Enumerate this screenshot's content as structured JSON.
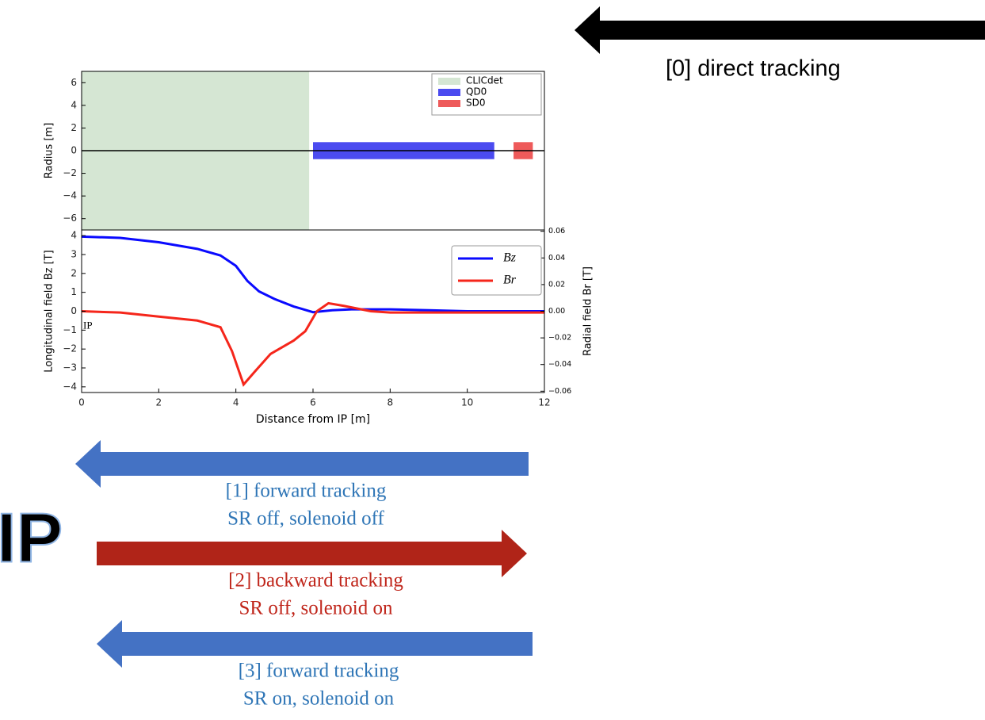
{
  "top_arrow_label": "[0] direct tracking",
  "ip_label": "IP",
  "chart_data": [
    {
      "type": "span",
      "ylabel": "Radius [m]",
      "xlim": [
        0,
        12
      ],
      "ylim": [
        -7,
        7
      ],
      "yticks": [
        {
          "value": -6,
          "label": "−6"
        },
        {
          "value": -4,
          "label": "−4"
        },
        {
          "value": -2,
          "label": "−2"
        },
        0,
        2,
        4,
        6
      ],
      "hline": 0,
      "legend": "upper right",
      "series": [
        {
          "name": "CLICdet",
          "color": "#d5e6d3",
          "start": 0,
          "end": 5.9,
          "bottom": -7,
          "top": 7
        },
        {
          "name": "QD0",
          "color": "#4b4bf0",
          "start": 6.0,
          "end": 10.7,
          "bottom": -0.75,
          "top": 0.75
        },
        {
          "name": "SD0",
          "color": "#ee5a5a",
          "start": 11.2,
          "end": 11.7,
          "bottom": -0.75,
          "top": 0.75
        }
      ]
    },
    {
      "type": "line",
      "xlabel": "Distance from IP [m]",
      "ylabel": "Longitudinal field Bz [T]",
      "y2label": "Radial field Br [T]",
      "annotation": {
        "text": "IP",
        "x": 0,
        "y": -0.8
      },
      "xlim": [
        0,
        12
      ],
      "xticks": [
        0,
        2,
        4,
        6,
        8,
        10,
        12
      ],
      "ylim": [
        -4.3,
        4.3
      ],
      "yticks": [
        {
          "value": -4,
          "label": "−4"
        },
        {
          "value": -3,
          "label": "−3"
        },
        {
          "value": -2,
          "label": "−2"
        },
        {
          "value": -1,
          "label": "−1"
        },
        0,
        1,
        2,
        3,
        4
      ],
      "y2lim": [
        -0.061,
        0.061
      ],
      "y2ticks": [
        {
          "value": -0.06,
          "label": "−0.06"
        },
        {
          "value": -0.04,
          "label": "−0.04"
        },
        {
          "value": -0.02,
          "label": "−0.02"
        },
        {
          "value": 0,
          "label": "0.00"
        },
        0.02,
        0.04,
        0.06
      ],
      "legend": "upper right",
      "series": [
        {
          "name": "Bz",
          "color": "#0a0aff",
          "x": [
            0,
            1,
            2,
            3,
            3.6,
            4,
            4.3,
            4.6,
            5,
            5.5,
            6,
            6.5,
            7,
            8,
            9,
            10,
            12
          ],
          "values": [
            3.95,
            3.88,
            3.65,
            3.3,
            2.95,
            2.4,
            1.6,
            1.05,
            0.65,
            0.25,
            -0.05,
            0.05,
            0.1,
            0.1,
            0.05,
            0,
            0
          ]
        },
        {
          "name": "Br",
          "color": "#f5261b",
          "axis": "y2",
          "x": [
            0,
            1,
            2,
            3,
            3.6,
            3.9,
            4.2,
            4.5,
            4.9,
            5.5,
            5.8,
            6.1,
            6.4,
            6.8,
            7.5,
            8,
            12
          ],
          "values": [
            0,
            -0.001,
            -0.004,
            -0.007,
            -0.012,
            -0.03,
            -0.055,
            -0.045,
            -0.032,
            -0.022,
            -0.015,
            0,
            0.006,
            0.004,
            0,
            -0.001,
            -0.001
          ]
        }
      ]
    }
  ],
  "steps": [
    {
      "label": "[1] forward tracking",
      "detail": "SR off, solenoid off",
      "direction": "left",
      "color": "#4472c4",
      "text_color": "#2e75b6"
    },
    {
      "label": "[2] backward tracking",
      "detail": "SR off, solenoid on",
      "direction": "right",
      "color": "#b02418",
      "text_color": "#c0261b"
    },
    {
      "label": "[3] forward tracking",
      "detail": "SR on, solenoid on",
      "direction": "left",
      "color": "#4472c4",
      "text_color": "#2e75b6"
    }
  ]
}
